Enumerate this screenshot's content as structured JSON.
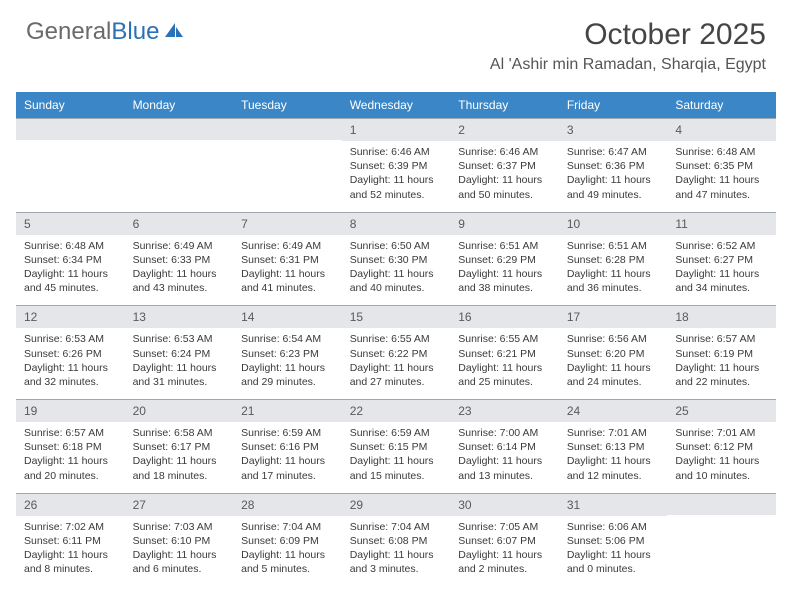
{
  "logo": {
    "text1": "General",
    "text2": "Blue"
  },
  "title": "October 2025",
  "location": "Al 'Ashir min Ramadan, Sharqia, Egypt",
  "colors": {
    "header_bg": "#3b86c6",
    "header_text": "#ffffff",
    "daynum_bg": "#e4e6e9",
    "daynum_border": "#9fa6ae",
    "logo_gray": "#6a6a6a",
    "logo_blue": "#2a72b5",
    "title_color": "#454545",
    "body_text": "#3a3a3a"
  },
  "day_labels": [
    "Sunday",
    "Monday",
    "Tuesday",
    "Wednesday",
    "Thursday",
    "Friday",
    "Saturday"
  ],
  "weeks": [
    [
      {
        "day": "",
        "sunrise": "",
        "sunset": "",
        "daylight": ""
      },
      {
        "day": "",
        "sunrise": "",
        "sunset": "",
        "daylight": ""
      },
      {
        "day": "",
        "sunrise": "",
        "sunset": "",
        "daylight": ""
      },
      {
        "day": "1",
        "sunrise": "Sunrise: 6:46 AM",
        "sunset": "Sunset: 6:39 PM",
        "daylight": "Daylight: 11 hours and 52 minutes."
      },
      {
        "day": "2",
        "sunrise": "Sunrise: 6:46 AM",
        "sunset": "Sunset: 6:37 PM",
        "daylight": "Daylight: 11 hours and 50 minutes."
      },
      {
        "day": "3",
        "sunrise": "Sunrise: 6:47 AM",
        "sunset": "Sunset: 6:36 PM",
        "daylight": "Daylight: 11 hours and 49 minutes."
      },
      {
        "day": "4",
        "sunrise": "Sunrise: 6:48 AM",
        "sunset": "Sunset: 6:35 PM",
        "daylight": "Daylight: 11 hours and 47 minutes."
      }
    ],
    [
      {
        "day": "5",
        "sunrise": "Sunrise: 6:48 AM",
        "sunset": "Sunset: 6:34 PM",
        "daylight": "Daylight: 11 hours and 45 minutes."
      },
      {
        "day": "6",
        "sunrise": "Sunrise: 6:49 AM",
        "sunset": "Sunset: 6:33 PM",
        "daylight": "Daylight: 11 hours and 43 minutes."
      },
      {
        "day": "7",
        "sunrise": "Sunrise: 6:49 AM",
        "sunset": "Sunset: 6:31 PM",
        "daylight": "Daylight: 11 hours and 41 minutes."
      },
      {
        "day": "8",
        "sunrise": "Sunrise: 6:50 AM",
        "sunset": "Sunset: 6:30 PM",
        "daylight": "Daylight: 11 hours and 40 minutes."
      },
      {
        "day": "9",
        "sunrise": "Sunrise: 6:51 AM",
        "sunset": "Sunset: 6:29 PM",
        "daylight": "Daylight: 11 hours and 38 minutes."
      },
      {
        "day": "10",
        "sunrise": "Sunrise: 6:51 AM",
        "sunset": "Sunset: 6:28 PM",
        "daylight": "Daylight: 11 hours and 36 minutes."
      },
      {
        "day": "11",
        "sunrise": "Sunrise: 6:52 AM",
        "sunset": "Sunset: 6:27 PM",
        "daylight": "Daylight: 11 hours and 34 minutes."
      }
    ],
    [
      {
        "day": "12",
        "sunrise": "Sunrise: 6:53 AM",
        "sunset": "Sunset: 6:26 PM",
        "daylight": "Daylight: 11 hours and 32 minutes."
      },
      {
        "day": "13",
        "sunrise": "Sunrise: 6:53 AM",
        "sunset": "Sunset: 6:24 PM",
        "daylight": "Daylight: 11 hours and 31 minutes."
      },
      {
        "day": "14",
        "sunrise": "Sunrise: 6:54 AM",
        "sunset": "Sunset: 6:23 PM",
        "daylight": "Daylight: 11 hours and 29 minutes."
      },
      {
        "day": "15",
        "sunrise": "Sunrise: 6:55 AM",
        "sunset": "Sunset: 6:22 PM",
        "daylight": "Daylight: 11 hours and 27 minutes."
      },
      {
        "day": "16",
        "sunrise": "Sunrise: 6:55 AM",
        "sunset": "Sunset: 6:21 PM",
        "daylight": "Daylight: 11 hours and 25 minutes."
      },
      {
        "day": "17",
        "sunrise": "Sunrise: 6:56 AM",
        "sunset": "Sunset: 6:20 PM",
        "daylight": "Daylight: 11 hours and 24 minutes."
      },
      {
        "day": "18",
        "sunrise": "Sunrise: 6:57 AM",
        "sunset": "Sunset: 6:19 PM",
        "daylight": "Daylight: 11 hours and 22 minutes."
      }
    ],
    [
      {
        "day": "19",
        "sunrise": "Sunrise: 6:57 AM",
        "sunset": "Sunset: 6:18 PM",
        "daylight": "Daylight: 11 hours and 20 minutes."
      },
      {
        "day": "20",
        "sunrise": "Sunrise: 6:58 AM",
        "sunset": "Sunset: 6:17 PM",
        "daylight": "Daylight: 11 hours and 18 minutes."
      },
      {
        "day": "21",
        "sunrise": "Sunrise: 6:59 AM",
        "sunset": "Sunset: 6:16 PM",
        "daylight": "Daylight: 11 hours and 17 minutes."
      },
      {
        "day": "22",
        "sunrise": "Sunrise: 6:59 AM",
        "sunset": "Sunset: 6:15 PM",
        "daylight": "Daylight: 11 hours and 15 minutes."
      },
      {
        "day": "23",
        "sunrise": "Sunrise: 7:00 AM",
        "sunset": "Sunset: 6:14 PM",
        "daylight": "Daylight: 11 hours and 13 minutes."
      },
      {
        "day": "24",
        "sunrise": "Sunrise: 7:01 AM",
        "sunset": "Sunset: 6:13 PM",
        "daylight": "Daylight: 11 hours and 12 minutes."
      },
      {
        "day": "25",
        "sunrise": "Sunrise: 7:01 AM",
        "sunset": "Sunset: 6:12 PM",
        "daylight": "Daylight: 11 hours and 10 minutes."
      }
    ],
    [
      {
        "day": "26",
        "sunrise": "Sunrise: 7:02 AM",
        "sunset": "Sunset: 6:11 PM",
        "daylight": "Daylight: 11 hours and 8 minutes."
      },
      {
        "day": "27",
        "sunrise": "Sunrise: 7:03 AM",
        "sunset": "Sunset: 6:10 PM",
        "daylight": "Daylight: 11 hours and 6 minutes."
      },
      {
        "day": "28",
        "sunrise": "Sunrise: 7:04 AM",
        "sunset": "Sunset: 6:09 PM",
        "daylight": "Daylight: 11 hours and 5 minutes."
      },
      {
        "day": "29",
        "sunrise": "Sunrise: 7:04 AM",
        "sunset": "Sunset: 6:08 PM",
        "daylight": "Daylight: 11 hours and 3 minutes."
      },
      {
        "day": "30",
        "sunrise": "Sunrise: 7:05 AM",
        "sunset": "Sunset: 6:07 PM",
        "daylight": "Daylight: 11 hours and 2 minutes."
      },
      {
        "day": "31",
        "sunrise": "Sunrise: 6:06 AM",
        "sunset": "Sunset: 5:06 PM",
        "daylight": "Daylight: 11 hours and 0 minutes."
      },
      {
        "day": "",
        "sunrise": "",
        "sunset": "",
        "daylight": ""
      }
    ]
  ]
}
